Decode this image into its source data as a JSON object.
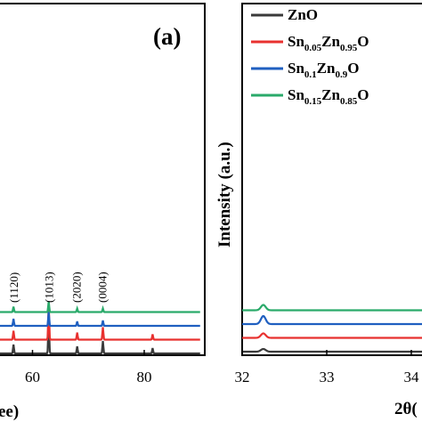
{
  "chart_data": [
    {
      "type": "line",
      "panel_label": "(a)",
      "xlabel_visible_fragment": "ee)",
      "ylabel": "",
      "xlim": [
        45,
        90
      ],
      "x_ticks": [
        {
          "value": 60,
          "label": "60"
        },
        {
          "value": 80,
          "label": "80"
        }
      ],
      "peak_labels": [
        {
          "x": 56.7,
          "text": "(1120)"
        },
        {
          "x": 63.0,
          "text": "(1013)"
        },
        {
          "x": 68.0,
          "text": "(2020)"
        },
        {
          "x": 72.6,
          "text": "(0004)"
        }
      ],
      "series": [
        {
          "color": "#3a3a3a",
          "offset": 0,
          "peaks": [
            [
              56.6,
              10
            ],
            [
              62.9,
              40
            ],
            [
              68.0,
              8
            ],
            [
              72.6,
              14
            ],
            [
              81.5,
              6
            ]
          ]
        },
        {
          "color": "#e8312f",
          "offset": 1,
          "peaks": [
            [
              56.6,
              10
            ],
            [
              62.9,
              40
            ],
            [
              68.0,
              8
            ],
            [
              72.6,
              14
            ],
            [
              81.5,
              6
            ]
          ]
        },
        {
          "color": "#1f5fc0",
          "offset": 2,
          "peaks": [
            [
              56.6,
              8
            ],
            [
              62.9,
              16
            ],
            [
              68.0,
              5
            ],
            [
              72.6,
              6
            ]
          ]
        },
        {
          "color": "#2aaa6a",
          "offset": 3,
          "peaks": [
            [
              56.6,
              6
            ],
            [
              62.9,
              12
            ],
            [
              68.0,
              4
            ],
            [
              72.6,
              4
            ]
          ]
        }
      ]
    },
    {
      "type": "line",
      "xlabel_visible_fragment": "2θ(",
      "ylabel": "Intensity (a.u.)",
      "xlim": [
        32,
        34.4
      ],
      "x_ticks": [
        {
          "value": 32,
          "label": "32"
        },
        {
          "value": 33,
          "label": "33"
        },
        {
          "value": 34,
          "label": "34"
        }
      ],
      "legend": [
        {
          "color": "#3a3a3a",
          "parts": [
            {
              "t": "ZnO"
            }
          ]
        },
        {
          "color": "#e8312f",
          "parts": [
            {
              "t": "Sn"
            },
            {
              "t": "0.05",
              "sub": true
            },
            {
              "t": "Zn"
            },
            {
              "t": "0.95",
              "sub": true
            },
            {
              "t": "O"
            }
          ]
        },
        {
          "color": "#1f5fc0",
          "parts": [
            {
              "t": "Sn"
            },
            {
              "t": "0.1",
              "sub": true
            },
            {
              "t": "Zn"
            },
            {
              "t": "0.9",
              "sub": true
            },
            {
              "t": "O"
            }
          ]
        },
        {
          "color": "#2aaa6a",
          "parts": [
            {
              "t": "Sn"
            },
            {
              "t": "0.15",
              "sub": true
            },
            {
              "t": "Zn"
            },
            {
              "t": "0.85",
              "sub": true
            },
            {
              "t": "O"
            }
          ]
        }
      ],
      "series": [
        {
          "color": "#3a3a3a",
          "offset": 0,
          "peaks": [
            [
              32.25,
              3
            ]
          ]
        },
        {
          "color": "#e8312f",
          "offset": 1,
          "peaks": [
            [
              32.25,
              5
            ]
          ]
        },
        {
          "color": "#1f5fc0",
          "offset": 2,
          "peaks": [
            [
              32.25,
              9
            ]
          ]
        },
        {
          "color": "#2aaa6a",
          "offset": 3,
          "peaks": [
            [
              32.25,
              6
            ]
          ]
        }
      ]
    }
  ]
}
